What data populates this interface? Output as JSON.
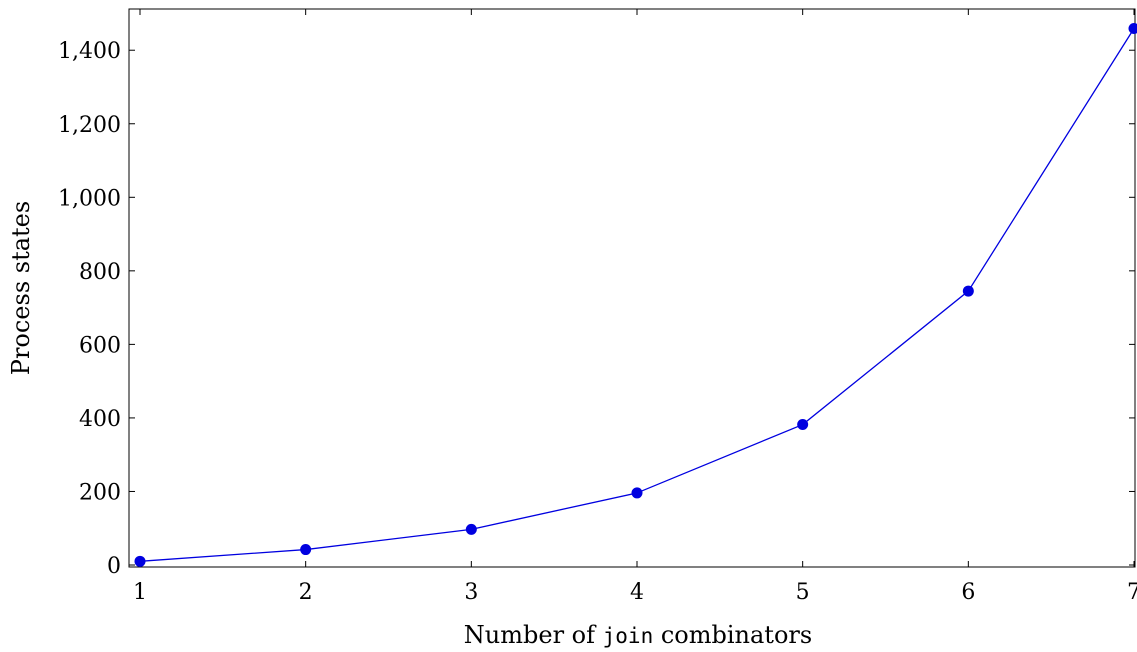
{
  "chart_data": {
    "type": "line",
    "title": "",
    "xlabel": {
      "prefix": "Number of ",
      "code": "join",
      "suffix": " combinators"
    },
    "ylabel": "Process states",
    "x": [
      1,
      2,
      3,
      4,
      5,
      6,
      7
    ],
    "xlim": [
      1,
      7
    ],
    "ylim": [
      0,
      1500
    ],
    "x_ticks": [
      "1",
      "2",
      "3",
      "4",
      "5",
      "6",
      "7"
    ],
    "y_ticks": [
      {
        "value": 0,
        "label": "0"
      },
      {
        "value": 200,
        "label": "200"
      },
      {
        "value": 400,
        "label": "400"
      },
      {
        "value": 600,
        "label": "600"
      },
      {
        "value": 800,
        "label": "800"
      },
      {
        "value": 1000,
        "label": "1,000"
      },
      {
        "value": 1200,
        "label": "1,200"
      },
      {
        "value": 1400,
        "label": "1,400"
      }
    ],
    "grid": false,
    "series": [
      {
        "values": [
          10,
          42,
          97,
          196,
          382,
          745,
          1459
        ],
        "color": "#0000e0"
      }
    ]
  }
}
